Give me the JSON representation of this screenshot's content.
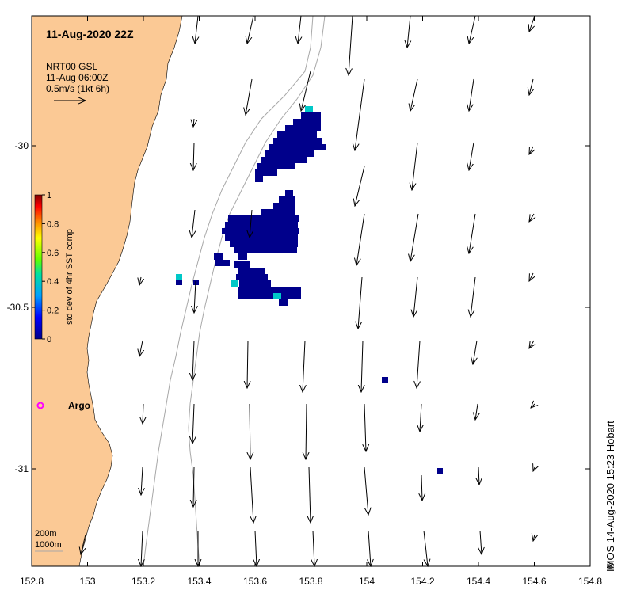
{
  "title": "11-Aug-2020 22Z",
  "arrow_legend": {
    "line1": "NRT00 GSL",
    "line2": "11-Aug 06:00Z",
    "line3": "0.5m/s (1kt 6h)"
  },
  "colorbar": {
    "label": "std dev of 4hr SST comp",
    "ticks": [
      "0",
      "0.2",
      "0.4",
      "0.6",
      "0.8",
      "1"
    ]
  },
  "argo_label": "Argo",
  "isobaths": {
    "line1": "200m",
    "line2": "1000m"
  },
  "credit": "IMOS 14-Aug-2020 15:23 Hobart",
  "copyright_symbol": "©",
  "colors": {
    "land": "#fbc995",
    "argo": "#ff00ff",
    "sst_high": "#00008b",
    "sst_cyan": "#00c8c8"
  },
  "chart_data": {
    "type": "map",
    "x_axis": {
      "ticks": [
        152.8,
        153,
        153.2,
        153.4,
        153.6,
        153.8,
        154,
        154.2,
        154.4,
        154.6,
        154.8
      ],
      "labels": [
        "152.8",
        "153",
        "153.2",
        "153.4",
        "153.6",
        "153.8",
        "154",
        "154.2",
        "154.4",
        "154.6",
        "154.8"
      ]
    },
    "y_axis": {
      "ticks": [
        -30,
        -30.5,
        -31
      ],
      "labels": [
        "-30",
        "-30.5",
        "-31"
      ]
    },
    "lon_range": [
      152.8,
      154.8
    ],
    "lat_range": [
      -31.3,
      -29.6
    ],
    "current_vectors_note": "0.5 m/s reference vector",
    "sst_std_dev_range": [
      0,
      1
    ]
  }
}
